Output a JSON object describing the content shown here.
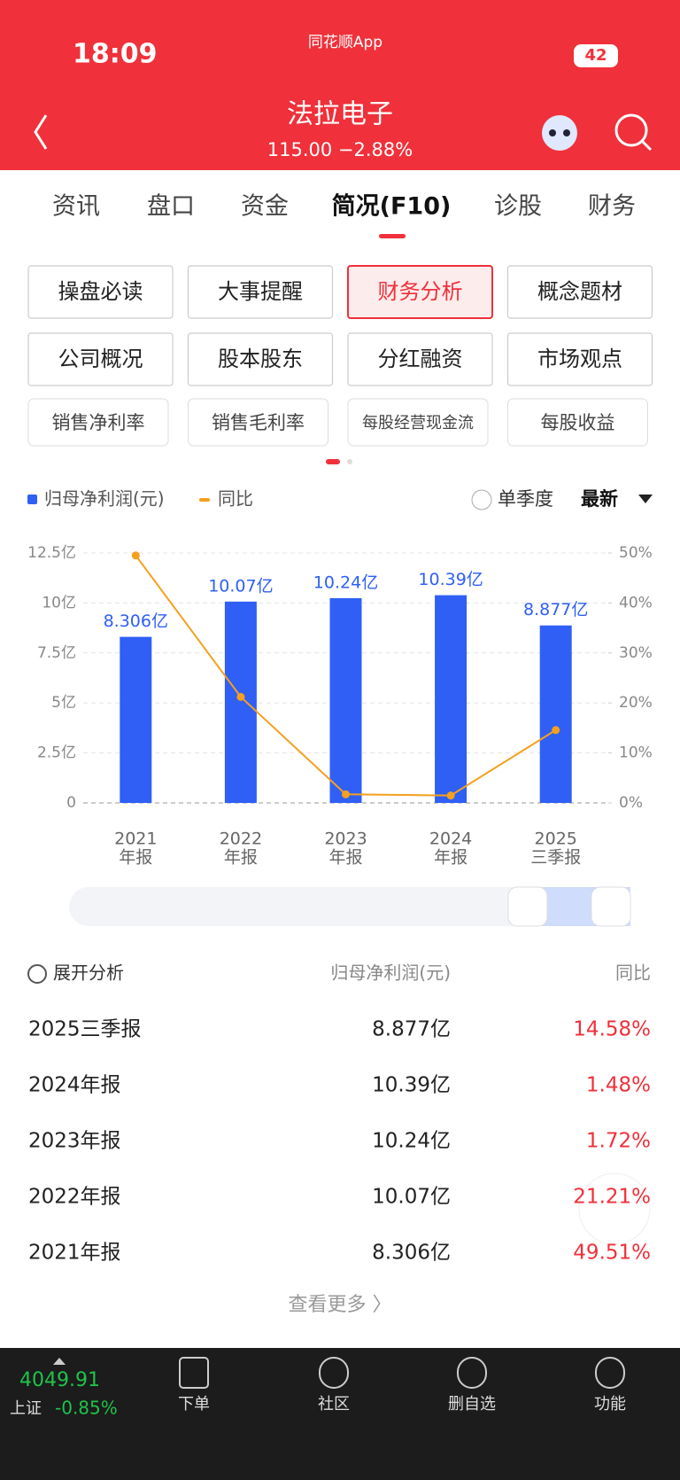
{
  "status": {
    "time": "18:09",
    "app": "同花顺App",
    "battery": "42"
  },
  "header": {
    "title": "法拉电子",
    "quote": "115.00 −2.88%"
  },
  "tabs": [
    "资讯",
    "盘口",
    "资金",
    "简况(F10)",
    "诊股",
    "财务"
  ],
  "buttons": [
    [
      "操盘必读",
      "大事提醒",
      "财务分析",
      "概念题材"
    ],
    [
      "公司概况",
      "股本股东",
      "分红融资",
      "市场观点"
    ]
  ],
  "chips": [
    "销售净利率",
    "销售毛利率",
    "每股经营现金流",
    "每股收益"
  ],
  "controls": {
    "single_quarter": "单季度",
    "latest": "最新"
  },
  "chart_data": {
    "type": "bar",
    "categories": [
      [
        "2021",
        "年报"
      ],
      [
        "2022",
        "年报"
      ],
      [
        "2023",
        "年报"
      ],
      [
        "2024",
        "年报"
      ],
      [
        "2025",
        "三季报"
      ]
    ],
    "series": [
      {
        "name": "归母净利润(元)",
        "color": "#2f5ff5",
        "values": [
          8.306,
          10.07,
          10.24,
          10.39,
          8.877
        ],
        "value_labels": [
          "8.306亿",
          "10.07亿",
          "10.24亿",
          "10.39亿",
          "8.877亿"
        ]
      },
      {
        "name": "同比",
        "color": "#f5a01e",
        "axis": "y2",
        "type": "line",
        "values": [
          49.51,
          21.21,
          1.72,
          1.48,
          14.58
        ]
      }
    ],
    "ylim": [
      0,
      12.5
    ],
    "yticks": [
      0,
      {
        "value": 2.5,
        "label": "2.5亿"
      },
      {
        "value": 5,
        "label": "5亿"
      },
      {
        "value": 7.5,
        "label": "7.5亿"
      },
      {
        "value": 10,
        "label": "10亿"
      },
      {
        "value": 12.5,
        "label": "12.5亿"
      }
    ],
    "y2lim": [
      0,
      50
    ],
    "y2ticks": [
      {
        "value": 0,
        "label": "0%"
      },
      {
        "value": 10,
        "label": "10%"
      },
      {
        "value": 20,
        "label": "20%"
      },
      {
        "value": 30,
        "label": "30%"
      },
      {
        "value": 40,
        "label": "40%"
      },
      {
        "value": 50,
        "label": "50%"
      }
    ],
    "grid": true
  },
  "table": {
    "header": [
      "展开分析",
      "归母净利润(元)",
      "同比"
    ],
    "rows": [
      [
        "2025三季报",
        "8.877亿",
        "14.58%"
      ],
      [
        "2024年报",
        "10.39亿",
        "1.48%"
      ],
      [
        "2023年报",
        "10.24亿",
        "1.72%"
      ],
      [
        "2022年报",
        "10.07亿",
        "21.21%"
      ],
      [
        "2021年报",
        "8.306亿",
        "49.51%"
      ]
    ],
    "more": "查看更多 〉"
  },
  "bottom": {
    "index_value": "4049.91",
    "index_name": "上证",
    "index_change": "-0.85%",
    "nav": [
      "下单",
      "社区",
      "删自选",
      "功能"
    ]
  }
}
